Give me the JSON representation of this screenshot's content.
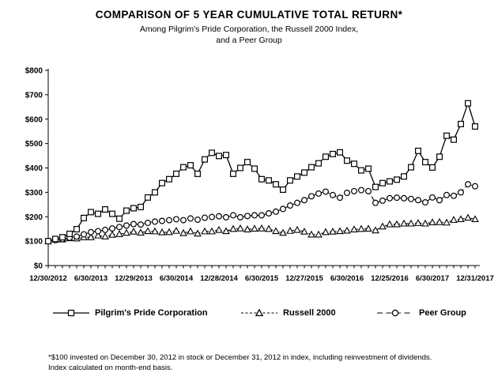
{
  "header": {
    "title": "COMPARISON OF 5 YEAR CUMULATIVE TOTAL RETURN*",
    "subtitle1": "Among Pilgrim's Pride Corporation, the Russell 2000 Index,",
    "subtitle2": "and a Peer Group"
  },
  "footnote": {
    "line1": "*$100 invested on December 30, 2012 in stock or December 31, 2012 in index, including reinvestment of dividends.",
    "line2": "Index calculated on month-end basis."
  },
  "chart_data": {
    "type": "line",
    "title": "COMPARISON OF 5 YEAR CUMULATIVE TOTAL RETURN*",
    "xlabel": "",
    "ylabel": "",
    "ylim": [
      0,
      800
    ],
    "grid": false,
    "legend_position": "bottom",
    "x_unit": "month-end, Dec 2012 through Dec 2017",
    "months_total": 61,
    "y_ticks": [
      {
        "v": 0,
        "label": "$0"
      },
      {
        "v": 100,
        "label": "$100"
      },
      {
        "v": 200,
        "label": "$200"
      },
      {
        "v": 300,
        "label": "$300"
      },
      {
        "v": 400,
        "label": "$400"
      },
      {
        "v": 500,
        "label": "$500"
      },
      {
        "v": 600,
        "label": "$600"
      },
      {
        "v": 700,
        "label": "$700"
      },
      {
        "v": 800,
        "label": "$800"
      }
    ],
    "x_major_ticks": [
      {
        "month": 0,
        "label": "12/30/2012"
      },
      {
        "month": 6,
        "label": "6/30/2013"
      },
      {
        "month": 12,
        "label": "12/29/2013"
      },
      {
        "month": 18,
        "label": "6/30/2014"
      },
      {
        "month": 24,
        "label": "12/28/2014"
      },
      {
        "month": 30,
        "label": "6/30/2015"
      },
      {
        "month": 36,
        "label": "12/27/2015"
      },
      {
        "month": 42,
        "label": "6/30/2016"
      },
      {
        "month": 48,
        "label": "12/25/2016"
      },
      {
        "month": 54,
        "label": "6/30/2017"
      },
      {
        "month": 60,
        "label": "12/31/2017"
      }
    ],
    "series": [
      {
        "name": "Pilgrim's Pride Corporation",
        "marker": "square",
        "line": "solid",
        "z": 2,
        "values": [
          100,
          109,
          116,
          130,
          149,
          195,
          219,
          212,
          230,
          212,
          192,
          225,
          235,
          240,
          279,
          300,
          338,
          354,
          376,
          403,
          411,
          376,
          435,
          462,
          449,
          453,
          376,
          400,
          424,
          397,
          354,
          349,
          333,
          311,
          349,
          365,
          381,
          403,
          419,
          446,
          457,
          464,
          430,
          417,
          390,
          397,
          322,
          338,
          345,
          352,
          365,
          403,
          470,
          424,
          402,
          446,
          532,
          516,
          580,
          665,
          570
        ]
      },
      {
        "name": "Russell 2000",
        "marker": "triangle",
        "line": "dashed",
        "z": 0,
        "values": [
          100,
          106,
          107,
          112,
          111,
          116,
          116,
          123,
          119,
          126,
          129,
          134,
          139,
          135,
          141,
          140,
          136,
          137,
          142,
          133,
          140,
          131,
          140,
          140,
          146,
          141,
          150,
          152,
          148,
          151,
          152,
          150,
          141,
          134,
          142,
          146,
          139,
          127,
          127,
          137,
          139,
          141,
          143,
          148,
          150,
          151,
          144,
          160,
          169,
          169,
          172,
          172,
          174,
          172,
          177,
          178,
          176,
          187,
          190,
          196,
          190
        ]
      },
      {
        "name": "Peer Group",
        "marker": "circle",
        "line": "longdash",
        "z": 1,
        "values": [
          100,
          104,
          108,
          114,
          119,
          128,
          137,
          141,
          146,
          152,
          158,
          164,
          170,
          168,
          175,
          180,
          183,
          186,
          190,
          186,
          193,
          188,
          196,
          199,
          202,
          198,
          206,
          198,
          203,
          206,
          206,
          214,
          221,
          232,
          246,
          257,
          268,
          284,
          295,
          303,
          289,
          278,
          298,
          305,
          309,
          305,
          257,
          266,
          276,
          278,
          276,
          273,
          268,
          259,
          279,
          268,
          289,
          286,
          300,
          333,
          325
        ]
      }
    ],
    "colors": {
      "line": "#000000",
      "marker_fill": "#ffffff",
      "background": "#ffffff"
    }
  }
}
